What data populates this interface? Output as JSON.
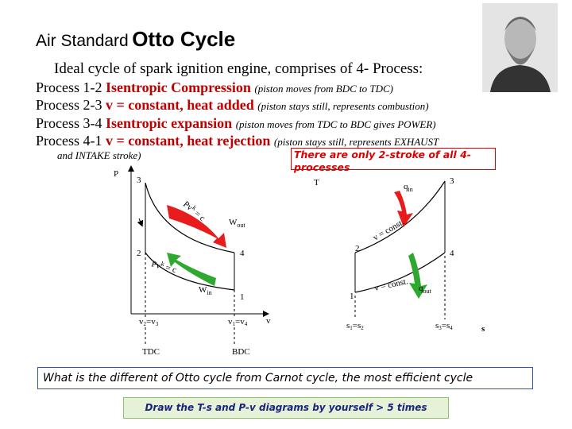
{
  "title": {
    "prefix": "Air Standard",
    "main": "Otto Cycle"
  },
  "intro": "Ideal cycle of spark ignition engine, comprises of 4- Process:",
  "processes": [
    {
      "label": "Process 1-2",
      "name": "Isentropic Compression",
      "note": "(piston moves from BDC to TDC)"
    },
    {
      "label": "Process 2-3",
      "name": "v = constant, heat added",
      "note": "(piston stays still, represents combustion)"
    },
    {
      "label": "Process 3-4",
      "name": "Isentropic expansion",
      "note": "(piston moves from TDC to BDC gives POWER)"
    },
    {
      "label": "Process 4-1",
      "name": "v = constant, heat rejection",
      "note": "(piston stays still, represents EXHAUST",
      "note_continued": "and INTAKE stroke)"
    }
  ],
  "callout": "There are only 2-stroke of all 4-processes",
  "pv_diagram": {
    "y_axis": "P",
    "x_axis": "v",
    "points": {
      "p1": "1",
      "p2": "2",
      "p3": "3",
      "p4": "4"
    },
    "expansion_law": {
      "base": "Pv",
      "sup": "k",
      "rest": " = c"
    },
    "compression_law": {
      "base": "Pv",
      "sup": "k",
      "rest": " = c"
    },
    "work_out": {
      "base": "W",
      "sub": "out"
    },
    "work_in": {
      "base": "W",
      "sub": "in"
    },
    "v_left": {
      "a": "v",
      "a_sub": "2",
      "eq": "=v",
      "b_sub": "3"
    },
    "v_right": {
      "a": "v",
      "a_sub": "1",
      "eq": "=v",
      "b_sub": "4"
    },
    "tdc": "TDC",
    "bdc": "BDC"
  },
  "ts_diagram": {
    "y_axis": "T",
    "x_axis": "s",
    "points": {
      "p1": "1",
      "p2": "2",
      "p3": "3",
      "p4": "4"
    },
    "heat_in": {
      "base": "q",
      "sub": "in"
    },
    "heat_out": {
      "base": "q",
      "sub": "out"
    },
    "upper_line": "v = const.",
    "lower_line": "v = const.",
    "s_left": {
      "a": "s",
      "a_sub": "1",
      "eq": "=s",
      "b_sub": "2"
    },
    "s_right": {
      "a": "s",
      "a_sub": "3",
      "eq": "=s",
      "b_sub": "4"
    }
  },
  "question": "What is the different of Otto cycle from Carnot cycle, the most efficient cycle",
  "footer": "Draw the T-s and P-v diagrams by yourself > 5 times"
}
